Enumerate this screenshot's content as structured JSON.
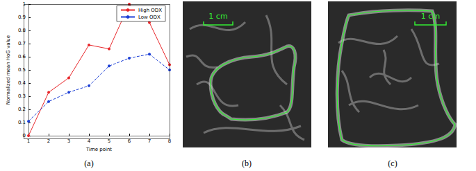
{
  "chart_data": {
    "type": "line",
    "x": [
      1,
      2,
      3,
      4,
      5,
      6,
      7,
      8
    ],
    "xlabel": "Time point",
    "ylabel": "Normalized mean HoG value",
    "xlim": [
      1,
      8
    ],
    "xticks": [
      1,
      2,
      3,
      4,
      5,
      6,
      7,
      8
    ],
    "ylim": [
      0,
      1
    ],
    "yticks": [
      0,
      0.1,
      0.2,
      0.3,
      0.4,
      0.5,
      0.6,
      0.7,
      0.8,
      0.9,
      1
    ],
    "grid": false,
    "legend": "upper right",
    "series": [
      {
        "name": "High ODX",
        "color": "#e8262a",
        "marker": "circle",
        "line_style": "solid",
        "values": [
          0,
          0.33,
          0.44,
          0.69,
          0.66,
          1.0,
          0.86,
          0.54
        ]
      },
      {
        "name": "Low ODX",
        "color": "#1c3fd6",
        "marker": "circle",
        "line_style": "dashed",
        "values": [
          0.11,
          0.26,
          0.33,
          0.38,
          0.53,
          0.59,
          0.62,
          0.5
        ]
      }
    ]
  },
  "captions": [
    "(a)",
    "(b)",
    "(c)"
  ],
  "images": [
    {
      "scale_bar": "1 cm"
    },
    {
      "scale_bar": "1 cm"
    }
  ]
}
